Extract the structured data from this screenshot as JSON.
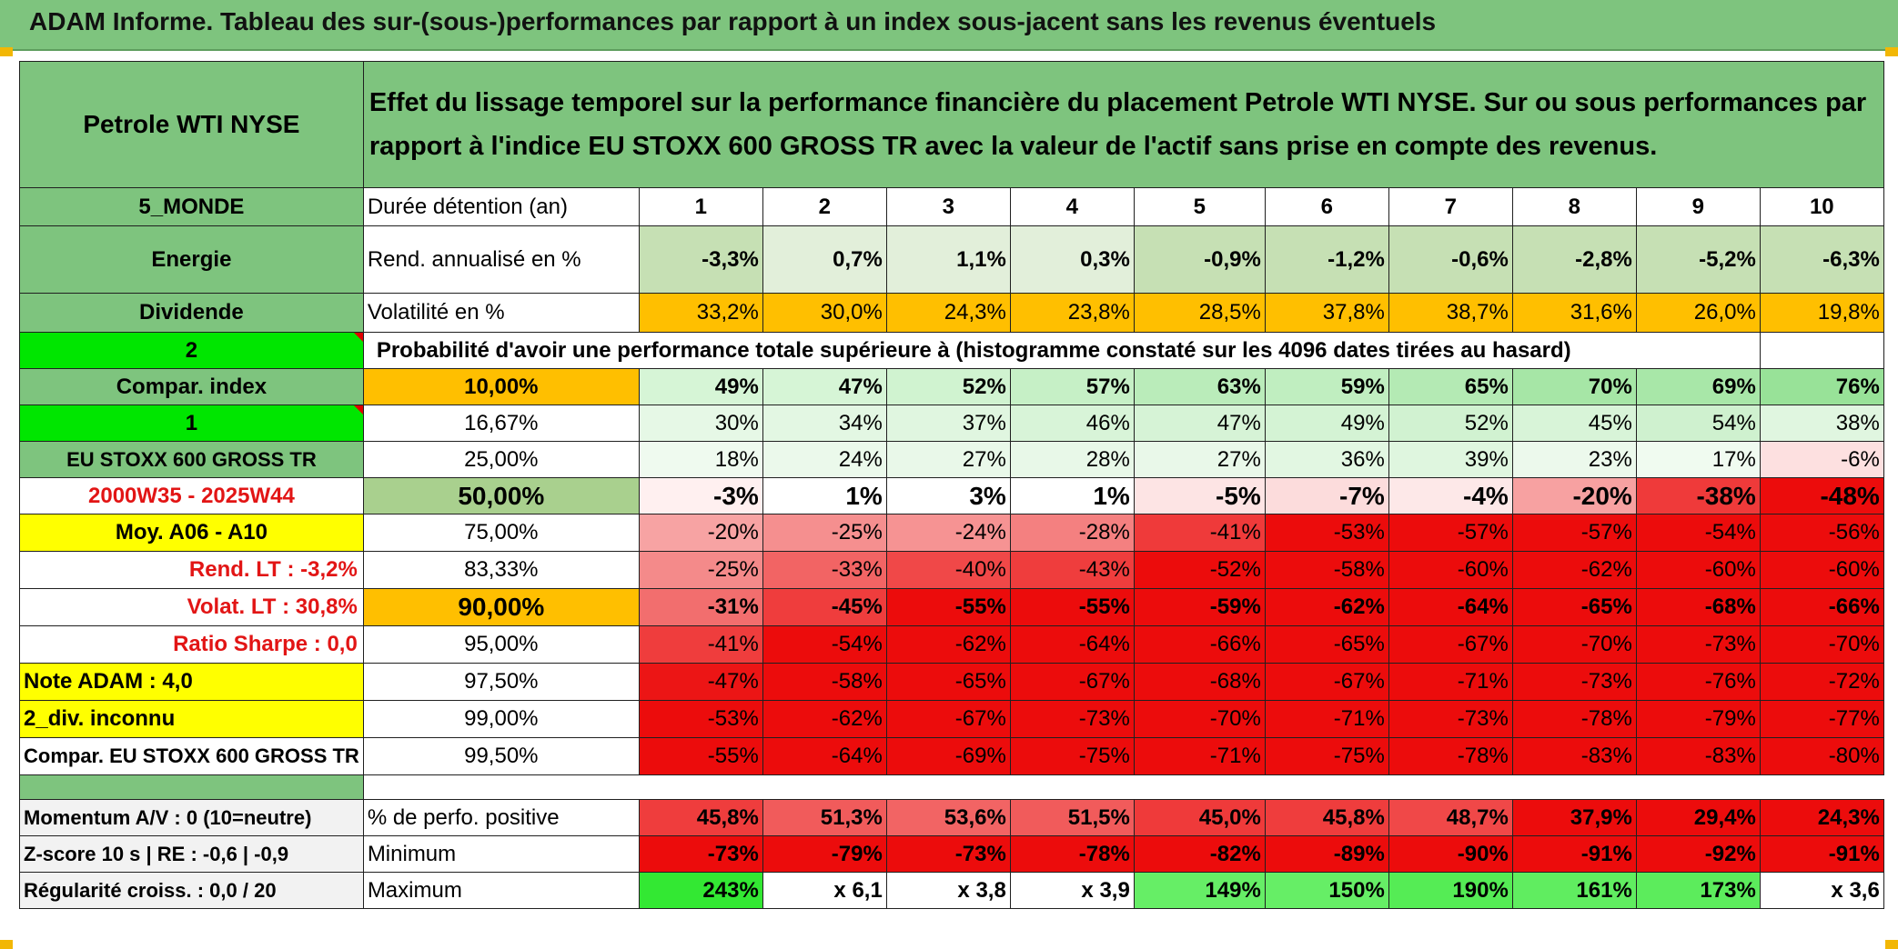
{
  "title": "ADAM Informe. Tableau des sur-(sous-)performances par rapport à un index sous-jacent sans les revenus éventuels",
  "asset_name": "Petrole WTI NYSE",
  "description": "Effet du lissage temporel sur la performance financière du placement Petrole WTI NYSE. Sur ou sous performances par rapport à l'indice EU STOXX 600 GROSS TR avec la valeur de l'actif sans prise en compte des revenus.",
  "side": {
    "region": "5_MONDE",
    "sector": "Energie",
    "dividend": "Dividende",
    "selector_a": "2",
    "compar_index": "Compar. index",
    "selector_b": "1",
    "index_name": "EU STOXX 600 GROSS TR",
    "period": "2000W35 - 2025W44",
    "moy": "Moy. A06 - A10",
    "rend_lt": "Rend. LT :    -3,2%",
    "volat_lt": "Volat. LT :   30,8%",
    "sharpe": "Ratio Sharpe :    0,0",
    "note": "Note ADAM : 4,0",
    "div": "2_div. inconnu",
    "compar_full": "Compar. EU STOXX 600 GROSS TR",
    "momentum": "Momentum A/V : 0 (10=neutre)",
    "zscore": "Z-score 10 s | RE : -0,6 | -0,9",
    "regularite": "Régularité croiss. : 0,0 / 20"
  },
  "labels": {
    "duree": "Durée détention (an)",
    "rend": "Rend. annualisé en %",
    "volat": "Volatilité en %",
    "probability": "Probabilité d'avoir une performance totale supérieure à (histogramme constaté sur les 4096 dates tirées au hasard)",
    "pct_positive": "% de perfo. positive",
    "minimum": "Minimum",
    "maximum": "Maximum"
  },
  "years": [
    "1",
    "2",
    "3",
    "4",
    "5",
    "6",
    "7",
    "8",
    "9",
    "10"
  ],
  "rend": [
    "-3,3%",
    "0,7%",
    "1,1%",
    "0,3%",
    "-0,9%",
    "-1,2%",
    "-0,6%",
    "-2,8%",
    "-5,2%",
    "-6,3%"
  ],
  "volat": [
    "33,2%",
    "30,0%",
    "24,3%",
    "23,8%",
    "28,5%",
    "37,8%",
    "38,7%",
    "31,6%",
    "26,0%",
    "19,8%"
  ],
  "quantiles": [
    {
      "level": "10,00%",
      "values": [
        "49%",
        "47%",
        "52%",
        "57%",
        "63%",
        "59%",
        "65%",
        "70%",
        "69%",
        "76%"
      ]
    },
    {
      "level": "16,67%",
      "values": [
        "30%",
        "34%",
        "37%",
        "46%",
        "47%",
        "49%",
        "52%",
        "45%",
        "54%",
        "38%"
      ]
    },
    {
      "level": "25,00%",
      "values": [
        "18%",
        "24%",
        "27%",
        "28%",
        "27%",
        "36%",
        "39%",
        "23%",
        "17%",
        "-6%"
      ]
    },
    {
      "level": "50,00%",
      "values": [
        "-3%",
        "1%",
        "3%",
        "1%",
        "-5%",
        "-7%",
        "-4%",
        "-20%",
        "-38%",
        "-48%"
      ]
    },
    {
      "level": "75,00%",
      "values": [
        "-20%",
        "-25%",
        "-24%",
        "-28%",
        "-41%",
        "-53%",
        "-57%",
        "-57%",
        "-54%",
        "-56%"
      ]
    },
    {
      "level": "83,33%",
      "values": [
        "-25%",
        "-33%",
        "-40%",
        "-43%",
        "-52%",
        "-58%",
        "-60%",
        "-62%",
        "-60%",
        "-60%"
      ]
    },
    {
      "level": "90,00%",
      "values": [
        "-31%",
        "-45%",
        "-55%",
        "-55%",
        "-59%",
        "-62%",
        "-64%",
        "-65%",
        "-68%",
        "-66%"
      ]
    },
    {
      "level": "95,00%",
      "values": [
        "-41%",
        "-54%",
        "-62%",
        "-64%",
        "-66%",
        "-65%",
        "-67%",
        "-70%",
        "-73%",
        "-70%"
      ]
    },
    {
      "level": "97,50%",
      "values": [
        "-47%",
        "-58%",
        "-65%",
        "-67%",
        "-68%",
        "-67%",
        "-71%",
        "-73%",
        "-76%",
        "-72%"
      ]
    },
    {
      "level": "99,00%",
      "values": [
        "-53%",
        "-62%",
        "-67%",
        "-73%",
        "-70%",
        "-71%",
        "-73%",
        "-78%",
        "-79%",
        "-77%"
      ]
    },
    {
      "level": "99,50%",
      "values": [
        "-55%",
        "-64%",
        "-69%",
        "-75%",
        "-71%",
        "-75%",
        "-78%",
        "-83%",
        "-83%",
        "-80%"
      ]
    }
  ],
  "pct_positive": [
    "45,8%",
    "51,3%",
    "53,6%",
    "51,5%",
    "45,0%",
    "45,8%",
    "48,7%",
    "37,9%",
    "29,4%",
    "24,3%"
  ],
  "minimum": [
    "-73%",
    "-79%",
    "-73%",
    "-78%",
    "-82%",
    "-89%",
    "-90%",
    "-91%",
    "-92%",
    "-91%"
  ],
  "maximum": [
    "243%",
    "x 6,1",
    "x 3,8",
    "x 3,9",
    "149%",
    "150%",
    "190%",
    "161%",
    "173%",
    "x 3,6"
  ],
  "colors": {
    "header_green": "#7ec47e",
    "highlight_yellow": "#ffff00",
    "orange": "#ffbf00",
    "bright_green": "#00e600",
    "label_red": "#e21515"
  }
}
